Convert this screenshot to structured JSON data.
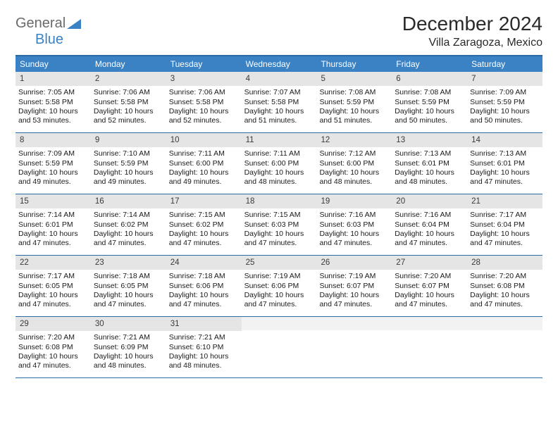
{
  "logo": {
    "part1": "General",
    "part2": "Blue"
  },
  "title": "December 2024",
  "location": "Villa Zaragoza, Mexico",
  "colors": {
    "header_bg": "#3b82c4",
    "border": "#2a6aa6",
    "daynum_bg": "#e5e5e5",
    "text": "#1a1a1a"
  },
  "fonts": {
    "title_size": 28,
    "location_size": 16,
    "weekday_size": 12,
    "cell_size": 10.5
  },
  "weekdays": [
    "Sunday",
    "Monday",
    "Tuesday",
    "Wednesday",
    "Thursday",
    "Friday",
    "Saturday"
  ],
  "weeks": [
    [
      {
        "n": "1",
        "sunrise": "Sunrise: 7:05 AM",
        "sunset": "Sunset: 5:58 PM",
        "day1": "Daylight: 10 hours",
        "day2": "and 53 minutes."
      },
      {
        "n": "2",
        "sunrise": "Sunrise: 7:06 AM",
        "sunset": "Sunset: 5:58 PM",
        "day1": "Daylight: 10 hours",
        "day2": "and 52 minutes."
      },
      {
        "n": "3",
        "sunrise": "Sunrise: 7:06 AM",
        "sunset": "Sunset: 5:58 PM",
        "day1": "Daylight: 10 hours",
        "day2": "and 52 minutes."
      },
      {
        "n": "4",
        "sunrise": "Sunrise: 7:07 AM",
        "sunset": "Sunset: 5:58 PM",
        "day1": "Daylight: 10 hours",
        "day2": "and 51 minutes."
      },
      {
        "n": "5",
        "sunrise": "Sunrise: 7:08 AM",
        "sunset": "Sunset: 5:59 PM",
        "day1": "Daylight: 10 hours",
        "day2": "and 51 minutes."
      },
      {
        "n": "6",
        "sunrise": "Sunrise: 7:08 AM",
        "sunset": "Sunset: 5:59 PM",
        "day1": "Daylight: 10 hours",
        "day2": "and 50 minutes."
      },
      {
        "n": "7",
        "sunrise": "Sunrise: 7:09 AM",
        "sunset": "Sunset: 5:59 PM",
        "day1": "Daylight: 10 hours",
        "day2": "and 50 minutes."
      }
    ],
    [
      {
        "n": "8",
        "sunrise": "Sunrise: 7:09 AM",
        "sunset": "Sunset: 5:59 PM",
        "day1": "Daylight: 10 hours",
        "day2": "and 49 minutes."
      },
      {
        "n": "9",
        "sunrise": "Sunrise: 7:10 AM",
        "sunset": "Sunset: 5:59 PM",
        "day1": "Daylight: 10 hours",
        "day2": "and 49 minutes."
      },
      {
        "n": "10",
        "sunrise": "Sunrise: 7:11 AM",
        "sunset": "Sunset: 6:00 PM",
        "day1": "Daylight: 10 hours",
        "day2": "and 49 minutes."
      },
      {
        "n": "11",
        "sunrise": "Sunrise: 7:11 AM",
        "sunset": "Sunset: 6:00 PM",
        "day1": "Daylight: 10 hours",
        "day2": "and 48 minutes."
      },
      {
        "n": "12",
        "sunrise": "Sunrise: 7:12 AM",
        "sunset": "Sunset: 6:00 PM",
        "day1": "Daylight: 10 hours",
        "day2": "and 48 minutes."
      },
      {
        "n": "13",
        "sunrise": "Sunrise: 7:13 AM",
        "sunset": "Sunset: 6:01 PM",
        "day1": "Daylight: 10 hours",
        "day2": "and 48 minutes."
      },
      {
        "n": "14",
        "sunrise": "Sunrise: 7:13 AM",
        "sunset": "Sunset: 6:01 PM",
        "day1": "Daylight: 10 hours",
        "day2": "and 47 minutes."
      }
    ],
    [
      {
        "n": "15",
        "sunrise": "Sunrise: 7:14 AM",
        "sunset": "Sunset: 6:01 PM",
        "day1": "Daylight: 10 hours",
        "day2": "and 47 minutes."
      },
      {
        "n": "16",
        "sunrise": "Sunrise: 7:14 AM",
        "sunset": "Sunset: 6:02 PM",
        "day1": "Daylight: 10 hours",
        "day2": "and 47 minutes."
      },
      {
        "n": "17",
        "sunrise": "Sunrise: 7:15 AM",
        "sunset": "Sunset: 6:02 PM",
        "day1": "Daylight: 10 hours",
        "day2": "and 47 minutes."
      },
      {
        "n": "18",
        "sunrise": "Sunrise: 7:15 AM",
        "sunset": "Sunset: 6:03 PM",
        "day1": "Daylight: 10 hours",
        "day2": "and 47 minutes."
      },
      {
        "n": "19",
        "sunrise": "Sunrise: 7:16 AM",
        "sunset": "Sunset: 6:03 PM",
        "day1": "Daylight: 10 hours",
        "day2": "and 47 minutes."
      },
      {
        "n": "20",
        "sunrise": "Sunrise: 7:16 AM",
        "sunset": "Sunset: 6:04 PM",
        "day1": "Daylight: 10 hours",
        "day2": "and 47 minutes."
      },
      {
        "n": "21",
        "sunrise": "Sunrise: 7:17 AM",
        "sunset": "Sunset: 6:04 PM",
        "day1": "Daylight: 10 hours",
        "day2": "and 47 minutes."
      }
    ],
    [
      {
        "n": "22",
        "sunrise": "Sunrise: 7:17 AM",
        "sunset": "Sunset: 6:05 PM",
        "day1": "Daylight: 10 hours",
        "day2": "and 47 minutes."
      },
      {
        "n": "23",
        "sunrise": "Sunrise: 7:18 AM",
        "sunset": "Sunset: 6:05 PM",
        "day1": "Daylight: 10 hours",
        "day2": "and 47 minutes."
      },
      {
        "n": "24",
        "sunrise": "Sunrise: 7:18 AM",
        "sunset": "Sunset: 6:06 PM",
        "day1": "Daylight: 10 hours",
        "day2": "and 47 minutes."
      },
      {
        "n": "25",
        "sunrise": "Sunrise: 7:19 AM",
        "sunset": "Sunset: 6:06 PM",
        "day1": "Daylight: 10 hours",
        "day2": "and 47 minutes."
      },
      {
        "n": "26",
        "sunrise": "Sunrise: 7:19 AM",
        "sunset": "Sunset: 6:07 PM",
        "day1": "Daylight: 10 hours",
        "day2": "and 47 minutes."
      },
      {
        "n": "27",
        "sunrise": "Sunrise: 7:20 AM",
        "sunset": "Sunset: 6:07 PM",
        "day1": "Daylight: 10 hours",
        "day2": "and 47 minutes."
      },
      {
        "n": "28",
        "sunrise": "Sunrise: 7:20 AM",
        "sunset": "Sunset: 6:08 PM",
        "day1": "Daylight: 10 hours",
        "day2": "and 47 minutes."
      }
    ],
    [
      {
        "n": "29",
        "sunrise": "Sunrise: 7:20 AM",
        "sunset": "Sunset: 6:08 PM",
        "day1": "Daylight: 10 hours",
        "day2": "and 47 minutes."
      },
      {
        "n": "30",
        "sunrise": "Sunrise: 7:21 AM",
        "sunset": "Sunset: 6:09 PM",
        "day1": "Daylight: 10 hours",
        "day2": "and 48 minutes."
      },
      {
        "n": "31",
        "sunrise": "Sunrise: 7:21 AM",
        "sunset": "Sunset: 6:10 PM",
        "day1": "Daylight: 10 hours",
        "day2": "and 48 minutes."
      },
      {
        "empty": true
      },
      {
        "empty": true
      },
      {
        "empty": true
      },
      {
        "empty": true
      }
    ]
  ]
}
